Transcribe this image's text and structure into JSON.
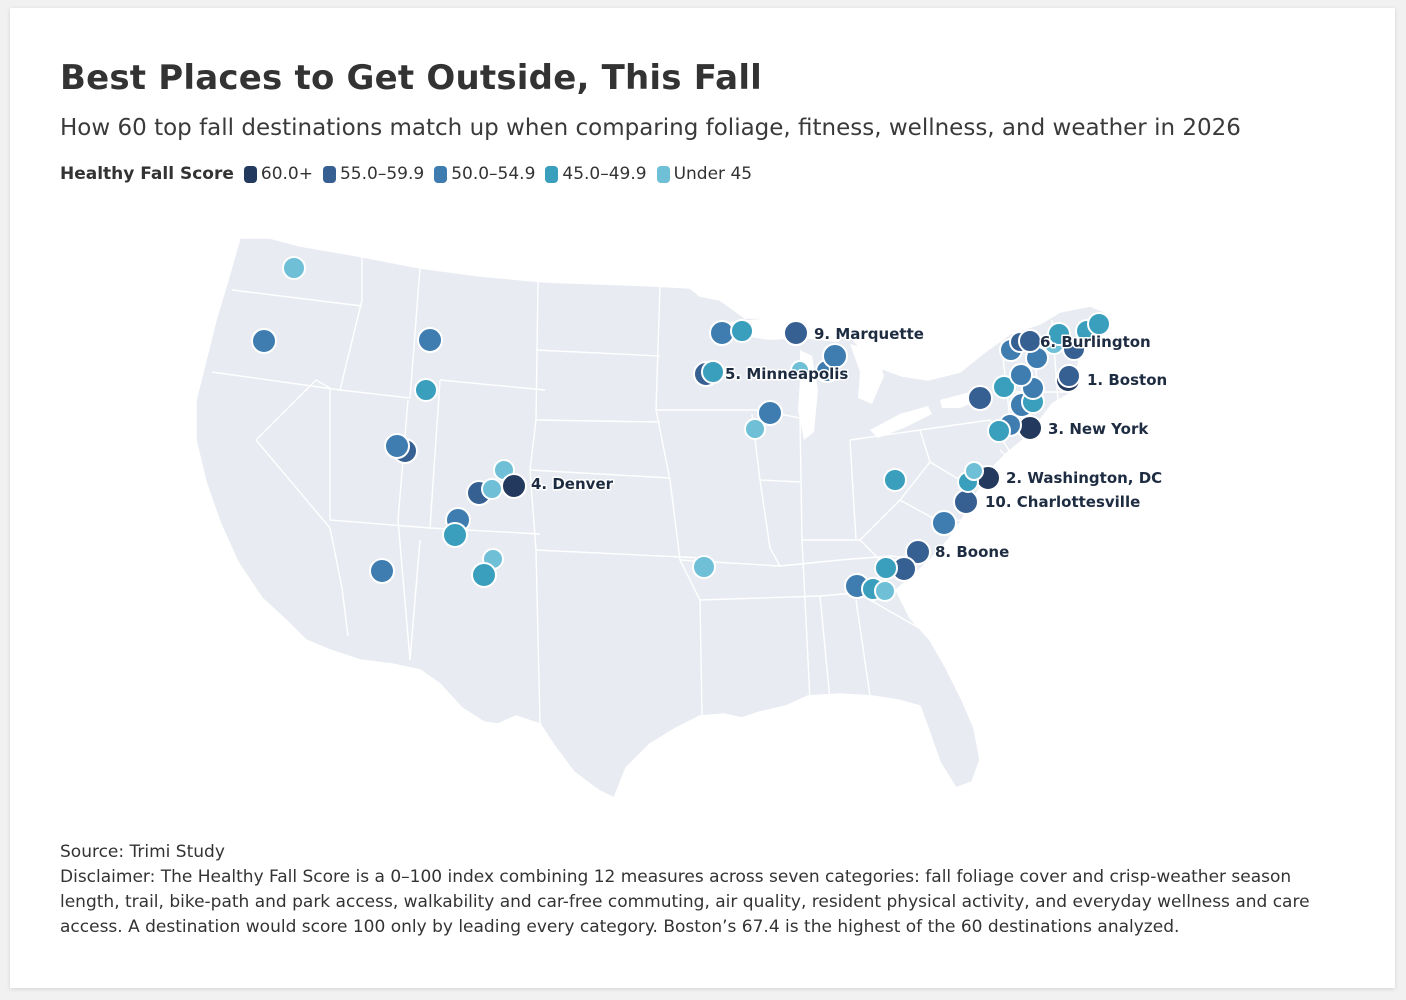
{
  "title": "Best Places to Get Outside, This Fall",
  "subtitle": "How 60 top fall destinations match up when comparing foliage, fitness, wellness, and weather in 2026",
  "legend": {
    "title": "Healthy Fall Score",
    "items": [
      {
        "label": "60.0+",
        "color": "#233a5e"
      },
      {
        "label": "55.0–59.9",
        "color": "#365f92"
      },
      {
        "label": "50.0–54.9",
        "color": "#3f7db0"
      },
      {
        "label": "45.0–49.9",
        "color": "#3a9fbd"
      },
      {
        "label": "Under 45",
        "color": "#6fbfd6"
      }
    ]
  },
  "map": {
    "land_color": "#e8ebf1",
    "border_color": "#ffffff",
    "labels": [
      {
        "text": "1. Boston"
      },
      {
        "text": "2. Washington, DC"
      },
      {
        "text": "3. New York"
      },
      {
        "text": "4. Denver"
      },
      {
        "text": "5. Minneapolis"
      },
      {
        "text": "6. Burlington"
      },
      {
        "text": "8. Boone"
      },
      {
        "text": "9. Marquette"
      },
      {
        "text": "10. Charlottesville"
      }
    ]
  },
  "source": "Source: Trimi Study",
  "disclaimer": "Disclaimer: The Healthy Fall Score is a 0–100 index combining 12 measures across seven categories: fall foliage cover and crisp-weather season length, trail, bike-path and park access, walkability and car-free commuting, air quality, resident physical activity, and everyday wellness and care access. A destination would score 100 only by leading every category. Boston’s 67.4 is the highest of the 60 destinations analyzed."
}
